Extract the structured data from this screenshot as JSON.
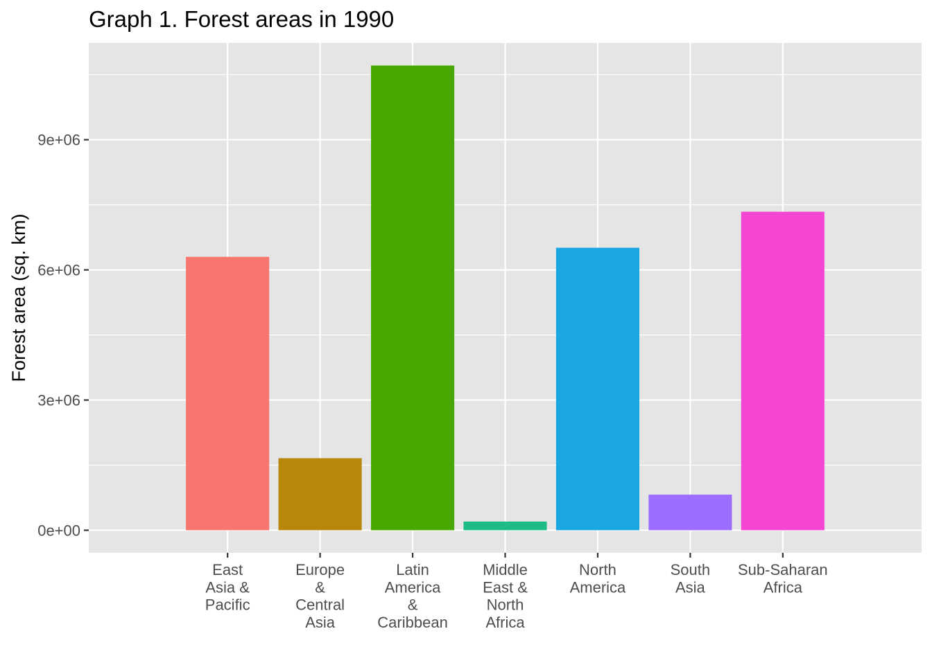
{
  "chart_data": {
    "type": "bar",
    "title": "Graph 1. Forest areas in 1990",
    "xlabel": "",
    "ylabel": "Forest area (sq. km)",
    "categories": [
      "East Asia & Pacific",
      "Europe & Central Asia",
      "Latin America & Caribbean",
      "Middle East & North Africa",
      "North America",
      "South Asia",
      "Sub-Saharan Africa"
    ],
    "category_label_lines": [
      [
        "East",
        "Asia &",
        "Pacific"
      ],
      [
        "Europe",
        "&",
        "Central",
        "Asia"
      ],
      [
        "Latin",
        "America",
        "&",
        "Caribbean"
      ],
      [
        "Middle",
        "East &",
        "North",
        "Africa"
      ],
      [
        "North",
        "America"
      ],
      [
        "South",
        "Asia"
      ],
      [
        "Sub-Saharan",
        "Africa"
      ]
    ],
    "values": [
      6300000,
      1660000,
      10710000,
      200000,
      6510000,
      820000,
      7340000
    ],
    "colors": [
      "#F8766D",
      "#B8860B",
      "#49A800",
      "#1FBB87",
      "#1AA6E3",
      "#9B6EFF",
      "#F545D3"
    ],
    "ylim": [
      -520000,
      11230000
    ],
    "yticks": [
      0,
      3000000,
      6000000,
      9000000
    ],
    "ytick_labels": [
      "0e+00",
      "3e+06",
      "6e+06",
      "9e+06"
    ],
    "grid": true,
    "legend": "none",
    "panel_background": "#E5E5E5",
    "grid_color": "#FFFFFF"
  }
}
